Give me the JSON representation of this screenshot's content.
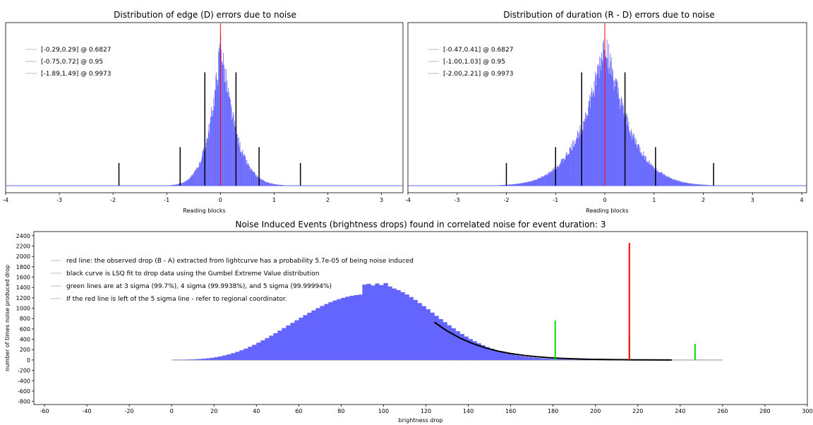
{
  "chart_data": [
    {
      "type": "bar",
      "title": "Distribution of edge (D) errors due to noise",
      "xlabel": "Reading blocks",
      "xlim": [
        -4,
        3.4
      ],
      "ticks": [
        -4,
        -3,
        -2,
        -1,
        0,
        1,
        2,
        3
      ],
      "tick_labels": [
        "-4",
        "-3",
        "-2",
        "-1",
        "0",
        "1",
        "2",
        "3"
      ],
      "center": 0.0,
      "spread_left": 0.24,
      "spread_right": 0.3,
      "ylim": [
        0,
        1.4
      ],
      "legend": [
        "[-0.29,0.29] @ 0.6827",
        "[-0.75,0.72] @ 0.95",
        "[-1.89,1.49] @ 0.9973"
      ],
      "intervals": [
        {
          "lo": -0.29,
          "hi": 0.29,
          "height": 1.0
        },
        {
          "lo": -0.75,
          "hi": 0.72,
          "height": 0.34
        },
        {
          "lo": -1.89,
          "hi": 1.49,
          "height": 0.2
        }
      ],
      "red_line_x": 0,
      "colors": {
        "bars": "#6464ff",
        "interval": "#000000",
        "center": "#ff0000"
      }
    },
    {
      "type": "bar",
      "title": "Distribution of duration (R - D) errors due to noise",
      "xlabel": "Reading blocks",
      "xlim": [
        -4,
        4.1
      ],
      "ticks": [
        -4,
        -3,
        -2,
        -1,
        0,
        1,
        2,
        3,
        4
      ],
      "tick_labels": [
        "-4",
        "-3",
        "-2",
        "-1",
        "0",
        "1",
        "2",
        "3",
        "4"
      ],
      "center": 0.0,
      "spread_left": 0.55,
      "spread_right": 0.55,
      "ylim": [
        0,
        1.4
      ],
      "legend": [
        "[-0.47,0.41] @ 0.6827",
        "[-1.00,1.03] @ 0.95",
        "[-2.00,2.21] @ 0.9973"
      ],
      "intervals": [
        {
          "lo": -0.47,
          "hi": 0.41,
          "height": 1.0
        },
        {
          "lo": -1.0,
          "hi": 1.03,
          "height": 0.34
        },
        {
          "lo": -2.0,
          "hi": 2.21,
          "height": 0.2
        }
      ],
      "red_line_x": 0,
      "colors": {
        "bars": "#6464ff",
        "interval": "#000000",
        "center": "#ff0000"
      }
    },
    {
      "type": "bar",
      "title": "Noise Induced Events (brightness drops) found in correlated noise for event duration: 3",
      "xlabel": "brightness drop",
      "ylabel": "number of times noise produced drop",
      "xlim": [
        -65,
        300
      ],
      "ylim": [
        -860,
        2480
      ],
      "xticks": [
        -60,
        -40,
        -20,
        0,
        20,
        40,
        60,
        80,
        100,
        120,
        140,
        160,
        180,
        200,
        220,
        240,
        260,
        280,
        300
      ],
      "yticks": [
        -800,
        -600,
        -400,
        -200,
        0,
        200,
        400,
        600,
        800,
        1000,
        1200,
        1400,
        1600,
        1800,
        2000,
        2200,
        2400
      ],
      "histogram": {
        "bin_width": 2,
        "x": [
          0,
          2,
          4,
          6,
          8,
          10,
          12,
          14,
          16,
          18,
          20,
          22,
          24,
          26,
          28,
          30,
          32,
          34,
          36,
          38,
          40,
          42,
          44,
          46,
          48,
          50,
          52,
          54,
          56,
          58,
          60,
          62,
          64,
          66,
          68,
          70,
          72,
          74,
          76,
          78,
          80,
          82,
          84,
          86,
          88,
          90,
          92,
          94,
          96,
          98,
          100,
          102,
          104,
          106,
          108,
          110,
          112,
          114,
          116,
          118,
          120,
          122,
          124,
          126,
          128,
          130,
          132,
          134,
          136,
          138,
          140,
          142,
          144,
          146,
          148,
          150,
          152,
          154,
          156,
          158,
          160,
          162,
          164,
          166,
          168,
          170,
          172,
          174,
          176,
          178,
          180,
          182,
          184,
          186,
          188,
          190,
          192,
          194,
          196,
          198,
          200,
          202,
          204,
          206,
          208,
          210,
          212,
          214,
          216,
          218,
          220,
          222,
          224,
          226,
          228,
          230,
          232,
          234,
          236,
          238,
          240,
          242,
          244,
          246,
          248,
          250,
          252,
          254,
          256,
          258
        ],
        "y": [
          2,
          3,
          5,
          7,
          10,
          14,
          19,
          25,
          33,
          43,
          55,
          70,
          88,
          108,
          132,
          158,
          188,
          220,
          256,
          294,
          335,
          378,
          423,
          470,
          518,
          567,
          617,
          667,
          717,
          767,
          817,
          866,
          913,
          958,
          1002,
          1043,
          1081,
          1116,
          1148,
          1176,
          1201,
          1222,
          1240,
          1253,
          1263,
          1455,
          1470,
          1440,
          1478,
          1445,
          1485,
          1420,
          1380,
          1350,
          1310,
          1265,
          1215,
          1160,
          1100,
          1040,
          980,
          915,
          852,
          790,
          730,
          670,
          612,
          556,
          503,
          453,
          406,
          362,
          322,
          284,
          250,
          219,
          191,
          166,
          143,
          123,
          106,
          91,
          77,
          66,
          56,
          47,
          40,
          33,
          28,
          23,
          19,
          16,
          13,
          11,
          9,
          7,
          6,
          5,
          4,
          3,
          3,
          2,
          2,
          1,
          1,
          1,
          1,
          1,
          0,
          0,
          0,
          0,
          0,
          0,
          0,
          0,
          0,
          0,
          0,
          0,
          0,
          0,
          0,
          0,
          0,
          0,
          0,
          0,
          0,
          0
        ]
      },
      "fit_curve": {
        "x": [
          124,
          130,
          136,
          142,
          148,
          154,
          160,
          166,
          172,
          178,
          184,
          190,
          196,
          202,
          208,
          214,
          220,
          226,
          232,
          236
        ],
        "y": [
          730,
          560,
          425,
          318,
          235,
          172,
          125,
          90,
          64,
          45,
          32,
          22,
          15,
          10,
          7,
          5,
          3,
          2,
          1,
          1
        ]
      },
      "baseline": {
        "x0": 0,
        "x1": 260
      },
      "red_line": {
        "x": 216,
        "y": 2260
      },
      "green_lines": [
        {
          "x": 181,
          "y": 760
        },
        {
          "x": 216,
          "y": 450
        },
        {
          "x": 247,
          "y": 310
        }
      ],
      "legend": [
        "red line: the observed drop (B - A) extracted from lightcurve has a probability 5.7e-05 of being noise induced",
        "black curve is LSQ fit to drop data using the Gumbel Extreme Value distribution",
        "green lines are at 3 sigma (99.7%), 4 sigma (99.9938%), and 5 sigma (99.99994%)",
        "If the red line is left of the 5 sigma line - refer to regional coordinator."
      ],
      "colors": {
        "bars": "#6464ff",
        "fit": "#000000",
        "red": "#ff0000",
        "green": "#00dd00",
        "baseline": "#9a9a9a"
      }
    }
  ]
}
